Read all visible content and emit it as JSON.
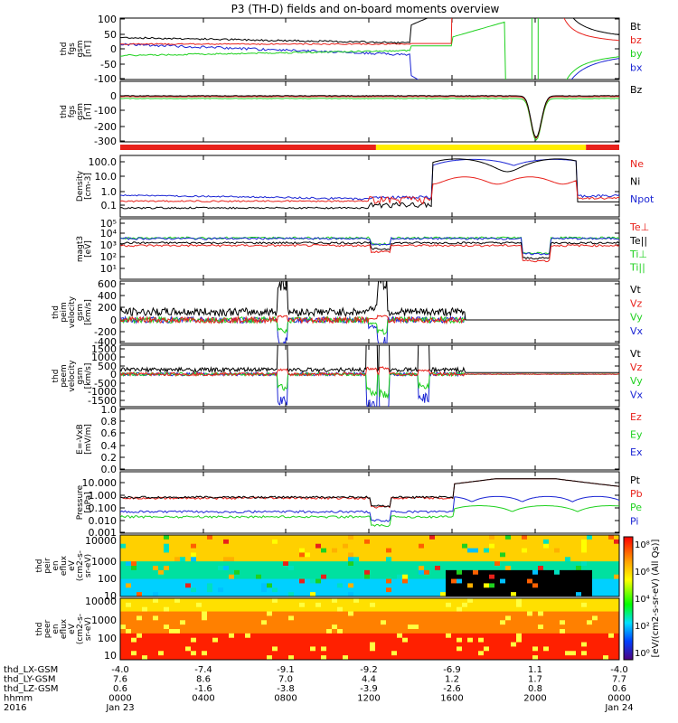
{
  "chart_data": {
    "type": "line",
    "title": "P3 (TH-D) fields and on-board moments overview",
    "colors": {
      "black": "#000000",
      "red": "#e8211b",
      "green": "#1fd11f",
      "blue": "#1b25d4",
      "yellow": "#ffee00"
    },
    "panels": [
      {
        "id": "fgs",
        "ylabel": [
          "thd",
          "fgs",
          "gsm",
          "[nT]"
        ],
        "ticks": [
          "100",
          "50",
          "0",
          "-50",
          "-100"
        ],
        "legend": [
          {
            "text": "Bt",
            "color": "black"
          },
          {
            "text": "bz",
            "color": "red"
          },
          {
            "text": "by",
            "color": "green"
          },
          {
            "text": "bx",
            "color": "blue"
          }
        ]
      },
      {
        "id": "fgs-dist",
        "ylabel": [
          "thd",
          "fgs",
          "gsm",
          "[nT]"
        ],
        "ticks": [
          "0",
          "-100",
          "-200",
          "-300"
        ],
        "legend": [
          {
            "text": "Bz",
            "color": "black"
          }
        ]
      },
      {
        "id": "density",
        "ylabel": [
          "Density",
          "[cm-3]"
        ],
        "ticks": [
          "100.0",
          "10.0",
          "1.0",
          "0.1"
        ],
        "legend": [
          {
            "text": "Ne",
            "color": "red"
          },
          {
            "text": "Ni",
            "color": "black"
          },
          {
            "text": "Npot",
            "color": "blue"
          }
        ]
      },
      {
        "id": "temp",
        "ylabel": [
          "magt3",
          "[eV]"
        ],
        "ticks": [
          "10⁵",
          "10⁴",
          "10³",
          "10²",
          "10¹"
        ],
        "legend": [
          {
            "text": "Te⊥",
            "color": "red"
          },
          {
            "text": "Te||",
            "color": "black"
          },
          {
            "text": "Ti⊥",
            "color": "green"
          },
          {
            "text": "Ti||",
            "color": "green"
          }
        ]
      },
      {
        "id": "peim",
        "ylabel": [
          "thd",
          "peim",
          "velocity",
          "gsm",
          "[km/s]"
        ],
        "ticks": [
          "600",
          "400",
          "200",
          "0",
          "-200",
          "-400"
        ],
        "legend": [
          {
            "text": "Vt",
            "color": "black"
          },
          {
            "text": "Vz",
            "color": "red"
          },
          {
            "text": "Vy",
            "color": "green"
          },
          {
            "text": "Vx",
            "color": "blue"
          }
        ]
      },
      {
        "id": "peem",
        "ylabel": [
          "thd",
          "peem",
          "velocity",
          "gsm",
          "[km/s]"
        ],
        "ticks": [
          "1500",
          "1000",
          "500",
          "0",
          "-500",
          "-1000",
          "-1500"
        ],
        "legend": [
          {
            "text": "Vt",
            "color": "black"
          },
          {
            "text": "Vz",
            "color": "red"
          },
          {
            "text": "Vy",
            "color": "green"
          },
          {
            "text": "Vx",
            "color": "blue"
          }
        ]
      },
      {
        "id": "efield",
        "ylabel": [
          "E=-VxB",
          "[mV/m]"
        ],
        "ticks": [
          "1.0",
          "0.8",
          "0.6",
          "0.4",
          "0.2",
          "0.0"
        ],
        "legend": [
          {
            "text": "Ez",
            "color": "red"
          },
          {
            "text": "Ey",
            "color": "green"
          },
          {
            "text": "Ex",
            "color": "blue"
          }
        ]
      },
      {
        "id": "pressure",
        "ylabel": [
          "Pressure",
          "[nPa]"
        ],
        "ticks": [
          "10.000",
          "1.000",
          "0.100",
          "0.010",
          "0.001"
        ],
        "legend": [
          {
            "text": "Pt",
            "color": "black"
          },
          {
            "text": "Pb",
            "color": "red"
          },
          {
            "text": "Pe",
            "color": "green"
          },
          {
            "text": "Pi",
            "color": "blue"
          }
        ]
      },
      {
        "id": "peir",
        "ylabel": [
          "thd",
          "peir",
          "en",
          "eflux",
          "eV",
          "(cm2-s-",
          "sr-eV)"
        ],
        "ticks": [
          "10000",
          "1000",
          "100",
          "10"
        ]
      },
      {
        "id": "peer",
        "ylabel": [
          "thd",
          "peer",
          "en",
          "eflux",
          "eV",
          "(cm2-s-",
          "sr-eV)"
        ],
        "ticks": [
          "10000",
          "1000",
          "100",
          "10"
        ]
      }
    ],
    "colorbar": {
      "label": "[eV/(cm2-s-sr-eV) (All Qs)]",
      "ticks": [
        "10⁸",
        "10⁶",
        "10⁴",
        "10²",
        "10⁰"
      ]
    },
    "x_axis": {
      "rows": [
        {
          "label": "thd_LX-GSM",
          "values": [
            "-4.0",
            "-7.4",
            "-9.1",
            "-9.2",
            "-6.9",
            "1.1",
            "-4.0"
          ]
        },
        {
          "label": "thd_LY-GSM",
          "values": [
            "7.6",
            "8.6",
            "7.0",
            "4.4",
            "1.2",
            "1.7",
            "7.7"
          ]
        },
        {
          "label": "thd_LZ-GSM",
          "values": [
            "0.6",
            "-1.6",
            "-3.8",
            "-3.9",
            "-2.6",
            "0.8",
            "0.6"
          ]
        },
        {
          "label": "hhmm",
          "values": [
            "0000",
            "0400",
            "0800",
            "1200",
            "1600",
            "2000",
            "0000"
          ]
        },
        {
          "label": "2016",
          "values": [
            "Jan 23",
            "",
            "",
            "",
            "",
            "",
            "Jan 24"
          ]
        }
      ]
    },
    "mode_bar": [
      {
        "from_hour": 0,
        "to_hour": 12.3,
        "color": "red"
      },
      {
        "from_hour": 12.3,
        "to_hour": 22.4,
        "color": "yellow"
      },
      {
        "from_hour": 22.4,
        "to_hour": 24,
        "color": "red"
      }
    ]
  }
}
